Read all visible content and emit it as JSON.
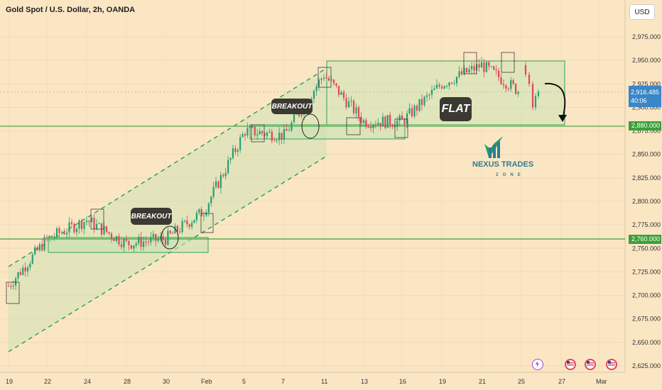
{
  "header": {
    "title": "Gold Spot / U.S. Dollar, 2h, OANDA",
    "currency": "USD"
  },
  "price_axis": {
    "ticks": [
      "2,975.000",
      "2,950.000",
      "2,925.000",
      "2,900.000",
      "2,875.000",
      "2,850.000",
      "2,825.000",
      "2,800.000",
      "2,775.000",
      "2,750.000",
      "2,725.000",
      "2,700.000",
      "2,675.000",
      "2,650.000",
      "2,625.000"
    ],
    "current_price": "2,916.485",
    "countdown": "40:06",
    "levels": [
      {
        "value": "2,880.000",
        "color": "#3aa13a"
      },
      {
        "value": "2,760.000",
        "color": "#3aa13a"
      }
    ]
  },
  "time_axis": {
    "ticks": [
      "19",
      "22",
      "24",
      "28",
      "30",
      "Feb",
      "5",
      "7",
      "11",
      "13",
      "16",
      "19",
      "21",
      "25",
      "27",
      "Mar"
    ]
  },
  "annotations": {
    "breakout_1": "BREAKOUT",
    "breakout_2": "BREAKOUT",
    "flat": "FLAT"
  },
  "logo": {
    "name": "NEXUS TRADES",
    "sub": "ZONE"
  },
  "colors": {
    "background": "#fbe6c4",
    "bull": "#2a9d6f",
    "bear": "#e0455a",
    "zone_fill": "#c8e3b4",
    "zone_stroke": "#2fa35a",
    "level_line": "#3aa13a",
    "current_price": "#3a86c6"
  },
  "chart_data": {
    "type": "line",
    "title": "Gold Spot / U.S. Dollar, 2h, OANDA",
    "x": [
      "19",
      "22",
      "24",
      "28",
      "30",
      "Feb",
      "5",
      "7",
      "11",
      "13",
      "16",
      "19",
      "21",
      "25"
    ],
    "series": [
      {
        "values": [
          2710,
          2760,
          2780,
          2755,
          2760,
          2790,
          2875,
          2870,
          2935,
          2885,
          2885,
          2925,
          2945,
          2916
        ]
      }
    ],
    "ylim": [
      2620,
      2990
    ],
    "grid": true,
    "horizontal_levels": [
      2880,
      2760
    ],
    "current_price": 2916.485
  }
}
